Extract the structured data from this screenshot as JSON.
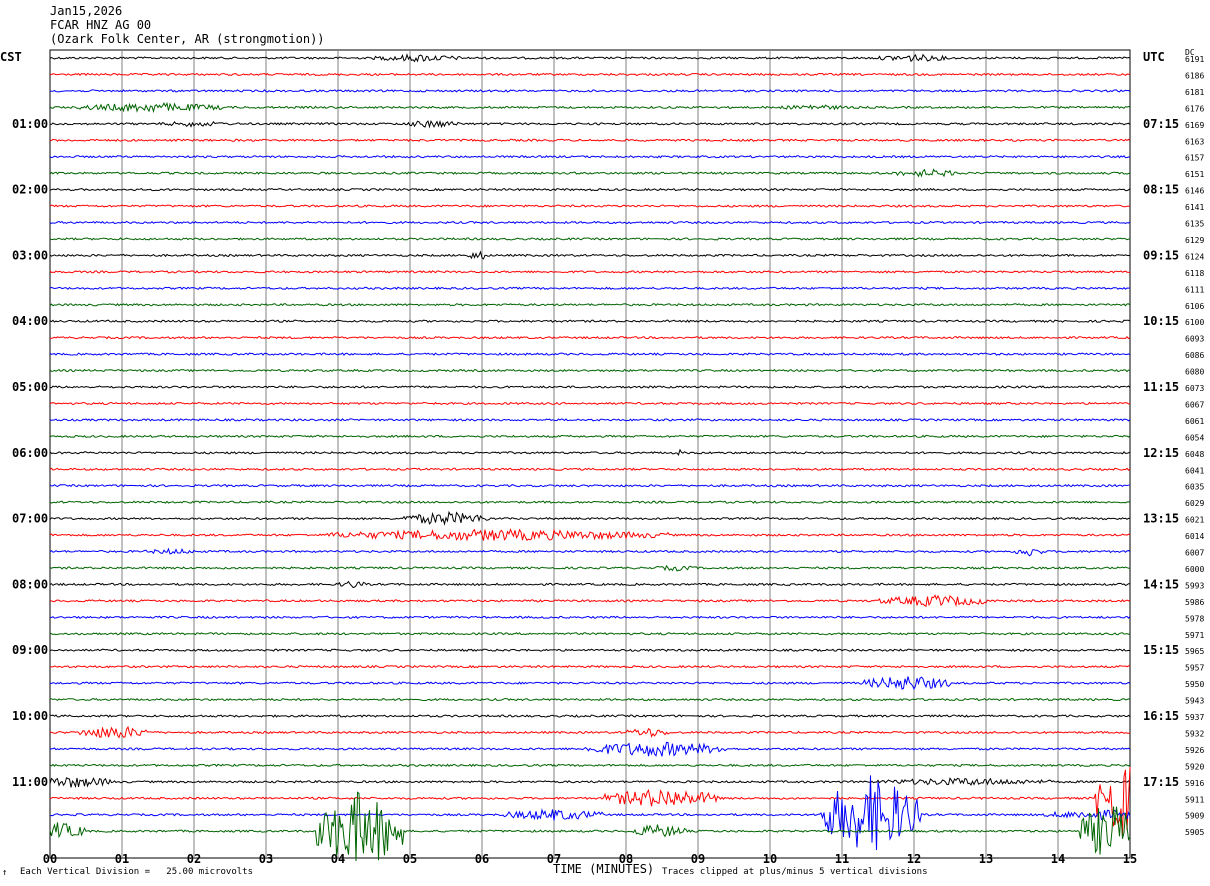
{
  "header": {
    "date": "Jan15,2026",
    "station": "FCAR HNZ AG 00",
    "location": "(Ozark Folk Center, AR (strongmotion))"
  },
  "left_tz": "CST",
  "right_tz": "UTC",
  "dc_label": "DC",
  "footer": {
    "left": "Each Vertical Division =   25.00 microvolts",
    "center": "TIME (MINUTES)",
    "right": "Traces clipped at plus/minus 5 vertical divisions",
    "corner_mark": "↑"
  },
  "colors": {
    "cycle": [
      "#000000",
      "#ff0000",
      "#0000ff",
      "#006400"
    ],
    "grid": "#808080"
  },
  "chart_data": {
    "type": "line",
    "xlabel": "TIME (MINUTES)",
    "x_ticks": [
      "00",
      "01",
      "02",
      "03",
      "04",
      "05",
      "06",
      "07",
      "08",
      "09",
      "10",
      "11",
      "12",
      "13",
      "14",
      "15"
    ],
    "xlim": [
      0,
      15
    ],
    "left_hour_labels": [
      "01:00",
      "02:00",
      "03:00",
      "04:00",
      "05:00",
      "06:00",
      "07:00",
      "08:00",
      "09:00",
      "10:00",
      "11:00"
    ],
    "right_hour_labels": [
      "07:15",
      "08:15",
      "09:15",
      "10:15",
      "11:15",
      "12:15",
      "13:15",
      "14:15",
      "15:15",
      "16:15",
      "17:15"
    ],
    "dc_values": [
      6191,
      6186,
      6181,
      6176,
      6169,
      6163,
      6157,
      6151,
      6146,
      6141,
      6135,
      6129,
      6124,
      6118,
      6111,
      6106,
      6100,
      6093,
      6086,
      6080,
      6073,
      6067,
      6061,
      6054,
      6048,
      6041,
      6035,
      6029,
      6021,
      6014,
      6007,
      6000,
      5993,
      5986,
      5978,
      5971,
      5965,
      5957,
      5950,
      5943,
      5937,
      5932,
      5926,
      5920,
      5916,
      5911,
      5909,
      5905
    ],
    "trace_count": 48,
    "events": [
      {
        "trace": 0,
        "minute": 5.1,
        "width": 0.6,
        "amp": 4
      },
      {
        "trace": 0,
        "minute": 12.0,
        "width": 0.5,
        "amp": 4
      },
      {
        "trace": 3,
        "minute": 1.4,
        "width": 1.0,
        "amp": 5
      },
      {
        "trace": 3,
        "minute": 10.6,
        "width": 0.5,
        "amp": 3
      },
      {
        "trace": 4,
        "minute": 2.0,
        "width": 0.5,
        "amp": 3
      },
      {
        "trace": 4,
        "minute": 5.3,
        "width": 0.4,
        "amp": 4
      },
      {
        "trace": 7,
        "minute": 12.2,
        "width": 0.5,
        "amp": 4
      },
      {
        "trace": 12,
        "minute": 5.95,
        "width": 0.15,
        "amp": 5
      },
      {
        "trace": 24,
        "minute": 8.75,
        "width": 0.05,
        "amp": 5
      },
      {
        "trace": 28,
        "minute": 5.5,
        "width": 0.6,
        "amp": 7
      },
      {
        "trace": 29,
        "minute": 6.2,
        "width": 2.4,
        "amp": 6
      },
      {
        "trace": 30,
        "minute": 1.7,
        "width": 0.4,
        "amp": 3
      },
      {
        "trace": 30,
        "minute": 13.6,
        "width": 0.2,
        "amp": 5
      },
      {
        "trace": 31,
        "minute": 8.7,
        "width": 0.3,
        "amp": 3
      },
      {
        "trace": 32,
        "minute": 4.2,
        "width": 0.2,
        "amp": 4
      },
      {
        "trace": 33,
        "minute": 12.3,
        "width": 0.8,
        "amp": 6
      },
      {
        "trace": 38,
        "minute": 11.9,
        "width": 0.6,
        "amp": 8
      },
      {
        "trace": 41,
        "minute": 0.9,
        "width": 0.5,
        "amp": 7
      },
      {
        "trace": 41,
        "minute": 8.3,
        "width": 0.3,
        "amp": 5
      },
      {
        "trace": 42,
        "minute": 8.4,
        "width": 1.0,
        "amp": 8
      },
      {
        "trace": 44,
        "minute": 0.3,
        "width": 0.6,
        "amp": 6
      },
      {
        "trace": 44,
        "minute": 12.7,
        "width": 1.2,
        "amp": 4
      },
      {
        "trace": 45,
        "minute": 8.5,
        "width": 0.8,
        "amp": 10
      },
      {
        "trace": 46,
        "minute": 7.0,
        "width": 0.7,
        "amp": 6
      },
      {
        "trace": 46,
        "minute": 14.6,
        "width": 0.8,
        "amp": 5
      },
      {
        "trace": 47,
        "minute": 0.1,
        "width": 0.4,
        "amp": 9
      },
      {
        "trace": 47,
        "minute": 4.3,
        "width": 0.6,
        "amp": 40
      },
      {
        "trace": 47,
        "minute": 8.45,
        "width": 0.4,
        "amp": 7
      },
      {
        "trace": 46,
        "minute": 11.4,
        "width": 0.7,
        "amp": 40
      },
      {
        "trace": 45,
        "minute": 14.9,
        "width": 0.4,
        "amp": 40
      },
      {
        "trace": 47,
        "minute": 14.7,
        "width": 0.4,
        "amp": 30
      }
    ]
  }
}
